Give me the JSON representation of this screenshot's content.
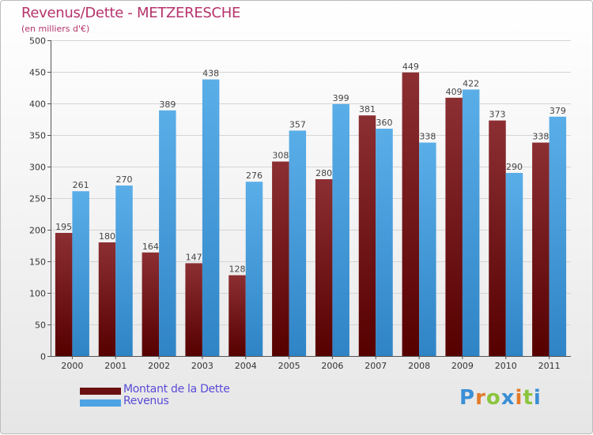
{
  "title": "Revenus/Dette - METZERESCHE",
  "subtitle": "(en milliers d'€)",
  "colors": {
    "title": "#b5336b",
    "dette_top": "#8c2f33",
    "dette_bottom": "#560000",
    "revenus_top": "#5aaee8",
    "revenus_bottom": "#2f84c6",
    "legend_text": "#5a4bd6",
    "grid": "#d5d5d5",
    "axis_text": "#333333"
  },
  "legend": [
    {
      "label": "Montant de la Dette",
      "color": "#6a1010"
    },
    {
      "label": "Revenus",
      "color": "#4ea3e3"
    }
  ],
  "logo": {
    "letters": [
      "P",
      "r",
      "o",
      "x",
      "i",
      "t",
      "i"
    ],
    "colors": [
      "#3a8fd6",
      "#e37a2b",
      "#8bc53f",
      "#3a8fd6",
      "#e37a2b",
      "#8bc53f",
      "#3a8fd6"
    ]
  },
  "chart_data": {
    "type": "bar",
    "categories": [
      "2000",
      "2001",
      "2002",
      "2003",
      "2004",
      "2005",
      "2006",
      "2007",
      "2008",
      "2009",
      "2010",
      "2011"
    ],
    "series": [
      {
        "name": "Montant de la Dette",
        "values": [
          195,
          180,
          164,
          147,
          128,
          308,
          280,
          381,
          449,
          409,
          373,
          338
        ]
      },
      {
        "name": "Revenus",
        "values": [
          261,
          270,
          389,
          438,
          276,
          357,
          399,
          360,
          338,
          422,
          290,
          379
        ]
      }
    ],
    "yticks": [
      0,
      50,
      100,
      150,
      200,
      250,
      300,
      350,
      400,
      450,
      500
    ],
    "ylim": [
      0,
      500
    ],
    "grid": true,
    "legend_position": "bottom-left"
  }
}
